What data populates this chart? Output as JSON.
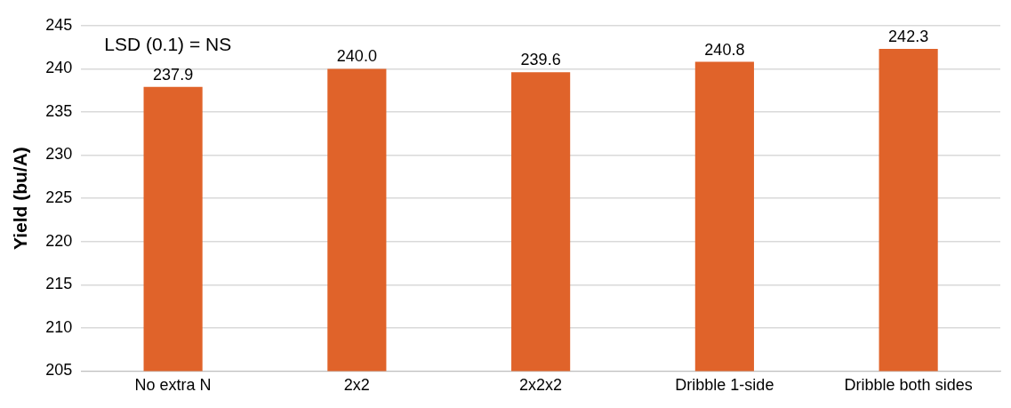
{
  "chart_data": {
    "type": "bar",
    "ylabel": "Yield (bu/A)",
    "categories": [
      "No extra N",
      "2x2",
      "2x2x2",
      "Dribble 1-side",
      "Dribble both sides"
    ],
    "values": [
      237.9,
      240.0,
      239.6,
      240.8,
      242.3
    ],
    "value_labels": [
      "237.9",
      "240.0",
      "239.6",
      "240.8",
      "242.3"
    ],
    "color": "#e0632a",
    "ylim": [
      205,
      245
    ],
    "yticks": [
      205,
      210,
      215,
      220,
      225,
      230,
      235,
      240,
      245
    ],
    "grid": "y",
    "annotations": [
      "LSD (0.1) = NS"
    ]
  }
}
